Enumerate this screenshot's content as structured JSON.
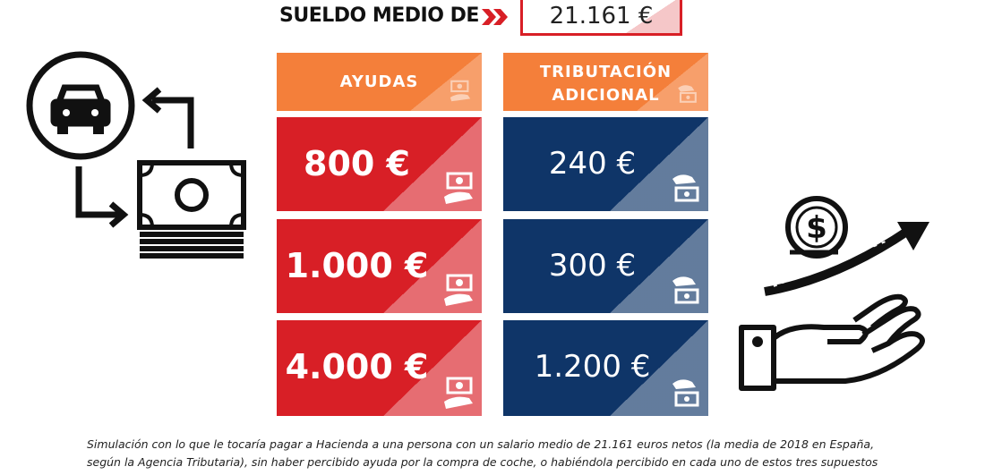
{
  "header": {
    "title": "SUELDO MEDIO DE",
    "salary": "21.161 €"
  },
  "columns": {
    "ayudas_label": "AYUDAS",
    "tributacion_label_line1": "TRIBUTACIÓN",
    "tributacion_label_line2": "ADICIONAL"
  },
  "rows": [
    {
      "ayuda": "800 €",
      "tributacion": "240 €"
    },
    {
      "ayuda": "1.000 €",
      "tributacion": "300 €"
    },
    {
      "ayuda": "4.000 €",
      "tributacion": "1.200 €"
    }
  ],
  "caption": {
    "line1": "Simulación con lo que le tocaría pagar a Hacienda a una persona con un salario medio de 21.161 euros netos (la media de 2018 en España,",
    "line2": "según la Agencia Tributaria), sin haber percibido ayuda por la compra de coche, o habiéndola percibido en cada uno de estos tres supuestos"
  },
  "colors": {
    "red": "#d81f26",
    "blue": "#0f3568",
    "orange": "#f47f3a"
  },
  "icons": [
    "car-icon",
    "cash-icon",
    "exchange-arrows-icon",
    "coin-icon",
    "growth-arrow-icon",
    "open-hand-icon",
    "hand-money-icon"
  ]
}
